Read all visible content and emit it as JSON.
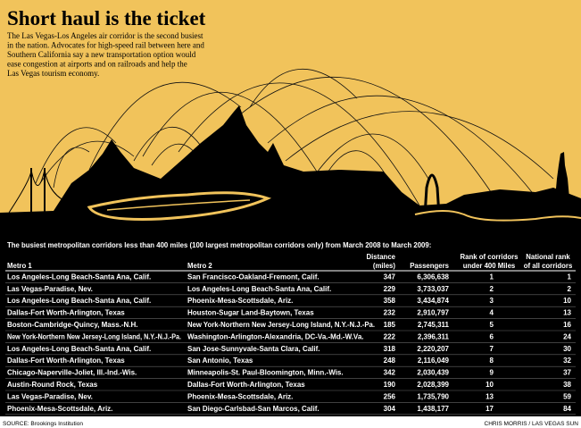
{
  "title": "Short haul is the ticket",
  "description": [
    "The Las Vegas-Los Angeles air corridor is the second busiest",
    "in the nation. Advocates for high-speed rail between here and",
    "Southern California say a new transportation option would",
    "ease congestion at airports and on railroads and help the",
    "Las Vegas tourism economy."
  ],
  "table": {
    "title": "The busiest metropolitan corridors less than 400 miles (100 largest metropolitan corridors only) from March 2008 to March 2009:",
    "headers": [
      [
        "Metro 1"
      ],
      [
        "Metro 2"
      ],
      [
        "Distance",
        "(miles)"
      ],
      [
        "Passengers"
      ],
      [
        "Rank of corridors",
        "under 400 Miles"
      ],
      [
        "National rank",
        "of all corridors"
      ]
    ],
    "rows": [
      [
        "Los Angeles-Long Beach-Santa Ana, Calif.",
        "San Francisco-Oakland-Fremont, Calif.",
        "347",
        "6,306,638",
        "1",
        "1"
      ],
      [
        "Las Vegas-Paradise, Nev.",
        "Los Angeles-Long Beach-Santa Ana, Calif.",
        "229",
        "3,733,037",
        "2",
        "2"
      ],
      [
        "Los Angeles-Long Beach-Santa Ana, Calif.",
        "Phoenix-Mesa-Scottsdale, Ariz.",
        "358",
        "3,434,874",
        "3",
        "10"
      ],
      [
        "Dallas-Fort Worth-Arlington, Texas",
        "Houston-Sugar Land-Baytown, Texas",
        "232",
        "2,910,797",
        "4",
        "13"
      ],
      [
        "Boston-Cambridge-Quincy, Mass.-N.H.",
        "New York-Northern New Jersey-Long Island, N.Y.-N.J.-Pa.",
        "185",
        "2,745,311",
        "5",
        "16"
      ],
      [
        "New York-Northern New Jersey-Long Island, N.Y.-N.J.-Pa.",
        "Washington-Arlington-Alexandria, DC-Va.-Md.-W.Va.",
        "222",
        "2,396,311",
        "6",
        "24"
      ],
      [
        "Los Angeles-Long Beach-Santa Ana, Calif.",
        "San Jose-Sunnyvale-Santa Clara, Calif.",
        "318",
        "2,220,207",
        "7",
        "30"
      ],
      [
        "Dallas-Fort Worth-Arlington, Texas",
        "San Antonio, Texas",
        "248",
        "2,116,049",
        "8",
        "32"
      ],
      [
        "Chicago-Naperville-Joliet, Ill.-Ind.-Wis.",
        "Minneapolis-St. Paul-Bloomington, Minn.-Wis.",
        "342",
        "2,030,439",
        "9",
        "37"
      ],
      [
        "Austin-Round Rock, Texas",
        "Dallas-Fort Worth-Arlington, Texas",
        "190",
        "2,028,399",
        "10",
        "38"
      ],
      [
        "Las Vegas-Paradise, Nev.",
        "Phoenix-Mesa-Scottsdale, Ariz.",
        "256",
        "1,735,790",
        "13",
        "59"
      ],
      [
        "Phoenix-Mesa-Scottsdale, Ariz.",
        "San Diego-Carlsbad-San Marcos, Calif.",
        "304",
        "1,438,177",
        "17",
        "84"
      ]
    ]
  },
  "source": "SOURCE: Brookings Institution",
  "credit": "CHRIS MORRIS / LAS VEGAS SUN"
}
